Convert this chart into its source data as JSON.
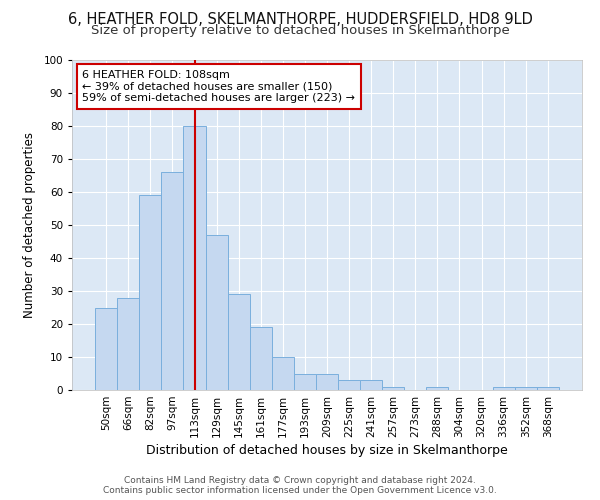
{
  "title1": "6, HEATHER FOLD, SKELMANTHORPE, HUDDERSFIELD, HD8 9LD",
  "title2": "Size of property relative to detached houses in Skelmanthorpe",
  "xlabel": "Distribution of detached houses by size in Skelmanthorpe",
  "ylabel": "Number of detached properties",
  "bar_labels": [
    "50sqm",
    "66sqm",
    "82sqm",
    "97sqm",
    "113sqm",
    "129sqm",
    "145sqm",
    "161sqm",
    "177sqm",
    "193sqm",
    "209sqm",
    "225sqm",
    "241sqm",
    "257sqm",
    "273sqm",
    "288sqm",
    "304sqm",
    "320sqm",
    "336sqm",
    "352sqm",
    "368sqm"
  ],
  "bar_values": [
    25,
    28,
    59,
    66,
    80,
    47,
    29,
    19,
    10,
    5,
    5,
    3,
    3,
    1,
    0,
    1,
    0,
    0,
    1,
    1,
    1
  ],
  "bar_color": "#c5d8f0",
  "bar_edge_color": "#7aafdd",
  "bg_color": "#dce8f5",
  "fig_bg_color": "#ffffff",
  "vline_x": 4.0,
  "vline_color": "#cc0000",
  "annotation_text": "6 HEATHER FOLD: 108sqm\n← 39% of detached houses are smaller (150)\n59% of semi-detached houses are larger (223) →",
  "annotation_box_color": "#ffffff",
  "annotation_box_edge": "#cc0000",
  "footer_text": "Contains HM Land Registry data © Crown copyright and database right 2024.\nContains public sector information licensed under the Open Government Licence v3.0.",
  "ylim": [
    0,
    100
  ],
  "title1_fontsize": 10.5,
  "title2_fontsize": 9.5,
  "xlabel_fontsize": 9,
  "ylabel_fontsize": 8.5,
  "tick_fontsize": 7.5,
  "annot_fontsize": 8,
  "footer_fontsize": 6.5
}
